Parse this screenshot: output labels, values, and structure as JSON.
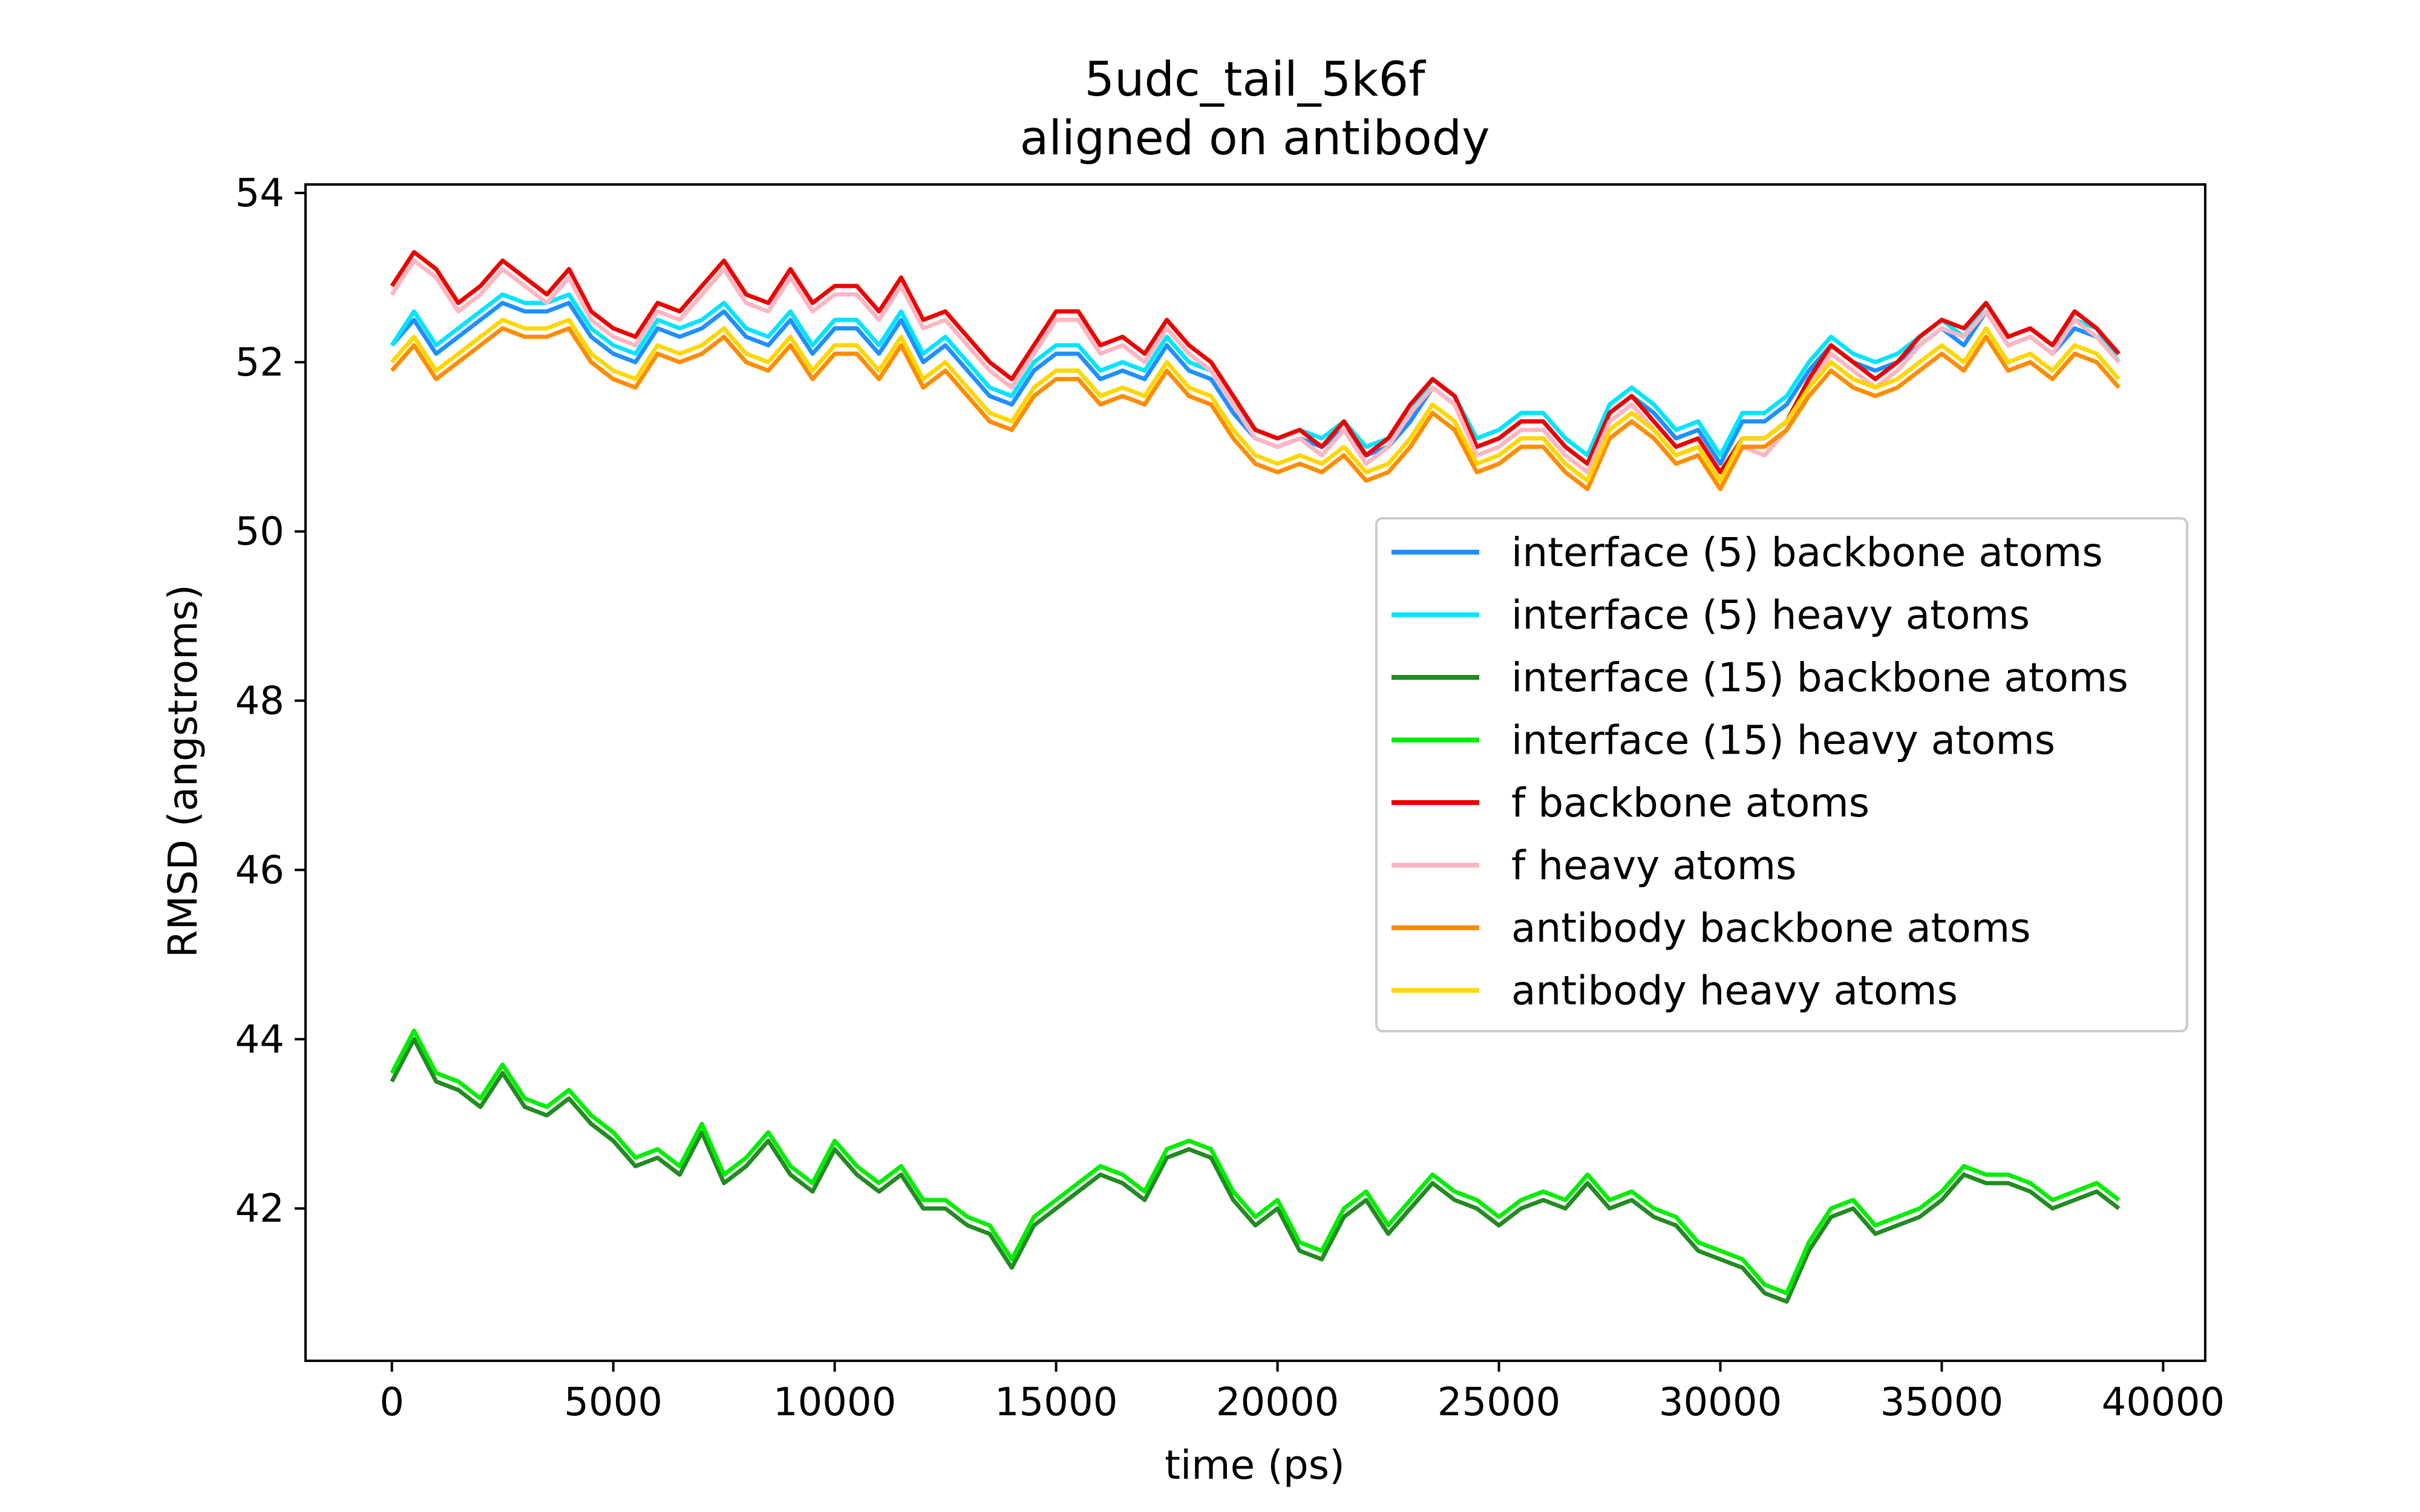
{
  "chart_data": {
    "type": "line",
    "title": "5udc_tail_5k6f",
    "subtitle": "aligned on antibody",
    "xlabel": "time (ps)",
    "ylabel": "RMSD (angstroms)",
    "xlim": [
      -1950,
      40950
    ],
    "ylim": [
      40.2,
      54.1
    ],
    "x_ticks": [
      "0",
      "5000",
      "10000",
      "15000",
      "20000",
      "25000",
      "30000",
      "35000",
      "40000"
    ],
    "y_ticks": [
      "42",
      "44",
      "46",
      "48",
      "50",
      "52",
      "54"
    ],
    "grid": false,
    "legend_position": "center-right",
    "x": [
      0,
      500,
      1000,
      1500,
      2000,
      2500,
      3000,
      3500,
      4000,
      4500,
      5000,
      5500,
      6000,
      6500,
      7000,
      7500,
      8000,
      8500,
      9000,
      9500,
      10000,
      10500,
      11000,
      11500,
      12000,
      12500,
      13000,
      13500,
      14000,
      14500,
      15000,
      15500,
      16000,
      16500,
      17000,
      17500,
      18000,
      18500,
      19000,
      19500,
      20000,
      20500,
      21000,
      21500,
      22000,
      22500,
      23000,
      23500,
      24000,
      24500,
      25000,
      25500,
      26000,
      26500,
      27000,
      27500,
      28000,
      28500,
      29000,
      29500,
      30000,
      30500,
      31000,
      31500,
      32000,
      32500,
      33000,
      33500,
      34000,
      34500,
      35000,
      35500,
      36000,
      36500,
      37000,
      37500,
      38000,
      38500,
      39000
    ],
    "series": [
      {
        "name": "interface (5) backbone atoms",
        "color": "#1e90ff",
        "values": [
          52.2,
          52.5,
          52.1,
          52.3,
          52.5,
          52.7,
          52.6,
          52.6,
          52.7,
          52.3,
          52.1,
          52.0,
          52.4,
          52.3,
          52.4,
          52.6,
          52.3,
          52.2,
          52.5,
          52.1,
          52.4,
          52.4,
          52.1,
          52.5,
          52.0,
          52.2,
          51.9,
          51.6,
          51.5,
          51.9,
          52.1,
          52.1,
          51.8,
          51.9,
          51.8,
          52.2,
          51.9,
          51.8,
          51.4,
          51.1,
          51.0,
          51.1,
          51.0,
          51.2,
          50.9,
          51.0,
          51.3,
          51.7,
          51.5,
          51.0,
          51.1,
          51.3,
          51.3,
          51.0,
          50.8,
          51.4,
          51.6,
          51.4,
          51.1,
          51.2,
          50.8,
          51.3,
          51.3,
          51.5,
          51.9,
          52.2,
          52.0,
          51.9,
          52.0,
          52.2,
          52.4,
          52.2,
          52.6,
          52.2,
          52.3,
          52.1,
          52.4,
          52.3,
          52.0
        ]
      },
      {
        "name": "interface (5) heavy atoms",
        "color": "#00e5ff",
        "values": [
          52.2,
          52.6,
          52.2,
          52.4,
          52.6,
          52.8,
          52.7,
          52.7,
          52.8,
          52.4,
          52.2,
          52.1,
          52.5,
          52.4,
          52.5,
          52.7,
          52.4,
          52.3,
          52.6,
          52.2,
          52.5,
          52.5,
          52.2,
          52.6,
          52.1,
          52.3,
          52.0,
          51.7,
          51.6,
          52.0,
          52.2,
          52.2,
          51.9,
          52.0,
          51.9,
          52.3,
          52.0,
          51.9,
          51.5,
          51.2,
          51.1,
          51.2,
          51.1,
          51.3,
          51.0,
          51.1,
          51.4,
          51.8,
          51.6,
          51.1,
          51.2,
          51.4,
          51.4,
          51.1,
          50.9,
          51.5,
          51.7,
          51.5,
          51.2,
          51.3,
          50.9,
          51.4,
          51.4,
          51.6,
          52.0,
          52.3,
          52.1,
          52.0,
          52.1,
          52.3,
          52.5,
          52.3,
          52.7,
          52.3,
          52.4,
          52.2,
          52.5,
          52.4,
          52.0
        ]
      },
      {
        "name": "interface (15) backbone atoms",
        "color": "#228b22",
        "values": [
          43.5,
          44.0,
          43.5,
          43.4,
          43.2,
          43.6,
          43.2,
          43.1,
          43.3,
          43.0,
          42.8,
          42.5,
          42.6,
          42.4,
          42.9,
          42.3,
          42.5,
          42.8,
          42.4,
          42.2,
          42.7,
          42.4,
          42.2,
          42.4,
          42.0,
          42.0,
          41.8,
          41.7,
          41.3,
          41.8,
          42.0,
          42.2,
          42.4,
          42.3,
          42.1,
          42.6,
          42.7,
          42.6,
          42.1,
          41.8,
          42.0,
          41.5,
          41.4,
          41.9,
          42.1,
          41.7,
          42.0,
          42.3,
          42.1,
          42.0,
          41.8,
          42.0,
          42.1,
          42.0,
          42.3,
          42.0,
          42.1,
          41.9,
          41.8,
          41.5,
          41.4,
          41.3,
          41.0,
          40.9,
          41.5,
          41.9,
          42.0,
          41.7,
          41.8,
          41.9,
          42.1,
          42.4,
          42.3,
          42.3,
          42.2,
          42.0,
          42.1,
          42.2,
          42.0
        ]
      },
      {
        "name": "interface (15) heavy atoms",
        "color": "#00ee00",
        "values": [
          43.6,
          44.1,
          43.6,
          43.5,
          43.3,
          43.7,
          43.3,
          43.2,
          43.4,
          43.1,
          42.9,
          42.6,
          42.7,
          42.5,
          43.0,
          42.4,
          42.6,
          42.9,
          42.5,
          42.3,
          42.8,
          42.5,
          42.3,
          42.5,
          42.1,
          42.1,
          41.9,
          41.8,
          41.4,
          41.9,
          42.1,
          42.3,
          42.5,
          42.4,
          42.2,
          42.7,
          42.8,
          42.7,
          42.2,
          41.9,
          42.1,
          41.6,
          41.5,
          42.0,
          42.2,
          41.8,
          42.1,
          42.4,
          42.2,
          42.1,
          41.9,
          42.1,
          42.2,
          42.1,
          42.4,
          42.1,
          42.2,
          42.0,
          41.9,
          41.6,
          41.5,
          41.4,
          41.1,
          41.0,
          41.6,
          42.0,
          42.1,
          41.8,
          41.9,
          42.0,
          42.2,
          42.5,
          42.4,
          42.4,
          42.3,
          42.1,
          42.2,
          42.3,
          42.1
        ]
      },
      {
        "name": "f backbone atoms",
        "color": "#ee0000",
        "values": [
          52.9,
          53.3,
          53.1,
          52.7,
          52.9,
          53.2,
          53.0,
          52.8,
          53.1,
          52.6,
          52.4,
          52.3,
          52.7,
          52.6,
          52.9,
          53.2,
          52.8,
          52.7,
          53.1,
          52.7,
          52.9,
          52.9,
          52.6,
          53.0,
          52.5,
          52.6,
          52.3,
          52.0,
          51.8,
          52.2,
          52.6,
          52.6,
          52.2,
          52.3,
          52.1,
          52.5,
          52.2,
          52.0,
          51.6,
          51.2,
          51.1,
          51.2,
          51.0,
          51.3,
          50.9,
          51.1,
          51.5,
          51.8,
          51.6,
          51.0,
          51.1,
          51.3,
          51.3,
          51.0,
          50.8,
          51.4,
          51.6,
          51.3,
          51.0,
          51.1,
          50.7,
          51.1,
          51.1,
          51.3,
          51.8,
          52.2,
          52.0,
          51.8,
          52.0,
          52.3,
          52.5,
          52.4,
          52.7,
          52.3,
          52.4,
          52.2,
          52.6,
          52.4,
          52.1
        ]
      },
      {
        "name": "f heavy atoms",
        "color": "#ffb6c1",
        "values": [
          52.8,
          53.2,
          53.0,
          52.6,
          52.8,
          53.1,
          52.9,
          52.7,
          53.0,
          52.5,
          52.3,
          52.2,
          52.6,
          52.5,
          52.8,
          53.1,
          52.7,
          52.6,
          53.0,
          52.6,
          52.8,
          52.8,
          52.5,
          52.9,
          52.4,
          52.5,
          52.2,
          51.9,
          51.7,
          52.1,
          52.5,
          52.5,
          52.1,
          52.2,
          52.0,
          52.4,
          52.1,
          51.9,
          51.5,
          51.1,
          51.0,
          51.1,
          50.9,
          51.2,
          50.8,
          51.0,
          51.4,
          51.7,
          51.5,
          50.9,
          51.0,
          51.2,
          51.2,
          50.9,
          50.7,
          51.3,
          51.5,
          51.2,
          50.9,
          51.0,
          50.6,
          51.0,
          50.9,
          51.2,
          51.7,
          52.1,
          51.9,
          51.7,
          51.9,
          52.2,
          52.4,
          52.3,
          52.6,
          52.2,
          52.3,
          52.1,
          52.5,
          52.3,
          52.0
        ]
      },
      {
        "name": "antibody backbone atoms",
        "color": "#ff8c00",
        "values": [
          51.9,
          52.2,
          51.8,
          52.0,
          52.2,
          52.4,
          52.3,
          52.3,
          52.4,
          52.0,
          51.8,
          51.7,
          52.1,
          52.0,
          52.1,
          52.3,
          52.0,
          51.9,
          52.2,
          51.8,
          52.1,
          52.1,
          51.8,
          52.2,
          51.7,
          51.9,
          51.6,
          51.3,
          51.2,
          51.6,
          51.8,
          51.8,
          51.5,
          51.6,
          51.5,
          51.9,
          51.6,
          51.5,
          51.1,
          50.8,
          50.7,
          50.8,
          50.7,
          50.9,
          50.6,
          50.7,
          51.0,
          51.4,
          51.2,
          50.7,
          50.8,
          51.0,
          51.0,
          50.7,
          50.5,
          51.1,
          51.3,
          51.1,
          50.8,
          50.9,
          50.5,
          51.0,
          51.0,
          51.2,
          51.6,
          51.9,
          51.7,
          51.6,
          51.7,
          51.9,
          52.1,
          51.9,
          52.3,
          51.9,
          52.0,
          51.8,
          52.1,
          52.0,
          51.7
        ]
      },
      {
        "name": "antibody heavy atoms",
        "color": "#ffd700",
        "values": [
          52.0,
          52.3,
          51.9,
          52.1,
          52.3,
          52.5,
          52.4,
          52.4,
          52.5,
          52.1,
          51.9,
          51.8,
          52.2,
          52.1,
          52.2,
          52.4,
          52.1,
          52.0,
          52.3,
          51.9,
          52.2,
          52.2,
          51.9,
          52.3,
          51.8,
          52.0,
          51.7,
          51.4,
          51.3,
          51.7,
          51.9,
          51.9,
          51.6,
          51.7,
          51.6,
          52.0,
          51.7,
          51.6,
          51.2,
          50.9,
          50.8,
          50.9,
          50.8,
          51.0,
          50.7,
          50.8,
          51.1,
          51.5,
          51.3,
          50.8,
          50.9,
          51.1,
          51.1,
          50.8,
          50.6,
          51.2,
          51.4,
          51.2,
          50.9,
          51.0,
          50.6,
          51.1,
          51.1,
          51.3,
          51.7,
          52.0,
          51.8,
          51.7,
          51.8,
          52.0,
          52.2,
          52.0,
          52.4,
          52.0,
          52.1,
          51.9,
          52.2,
          52.1,
          51.8
        ]
      }
    ]
  }
}
